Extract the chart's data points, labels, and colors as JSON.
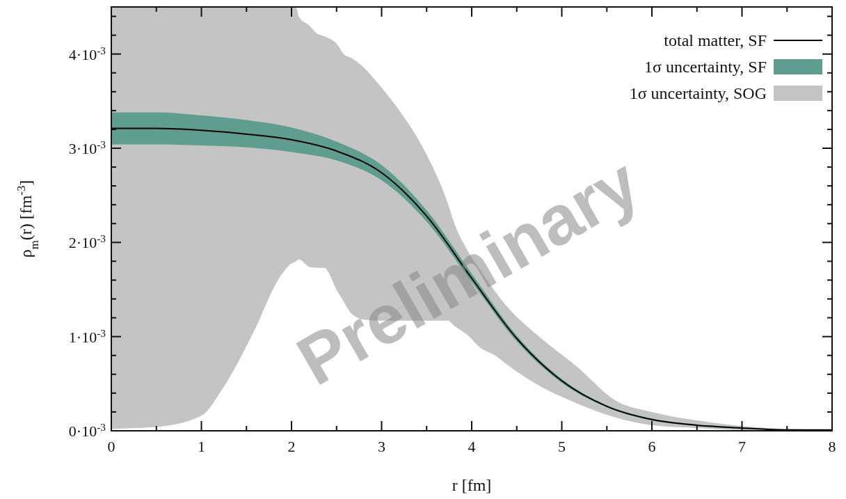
{
  "chart_data": {
    "type": "line",
    "xlabel": "r [fm]",
    "ylabel": "ρ$_{m}$(r) [fm$^{-3}$]",
    "xlim": [
      0,
      8
    ],
    "ylim": [
      0,
      0.0045
    ],
    "xticks": [
      0,
      {
        "value": 0.5,
        "label": null
      },
      1,
      {
        "value": 1.5,
        "label": null
      },
      2,
      {
        "value": 2.5,
        "label": null
      },
      3,
      {
        "value": 3.5,
        "label": null
      },
      4,
      {
        "value": 4.5,
        "label": null
      },
      5,
      {
        "value": 5.5,
        "label": null
      },
      6,
      {
        "value": 6.5,
        "label": null
      },
      7,
      {
        "value": 7.5,
        "label": null
      },
      8
    ],
    "yticks": [
      {
        "value": 0,
        "label": "0·10$^{-3}$"
      },
      {
        "value": 0.0002,
        "label": null
      },
      {
        "value": 0.0004,
        "label": null
      },
      {
        "value": 0.0006,
        "label": null
      },
      {
        "value": 0.0008,
        "label": null
      },
      {
        "value": 0.001,
        "label": "1·10$^{-3}$"
      },
      {
        "value": 0.0012,
        "label": null
      },
      {
        "value": 0.0014,
        "label": null
      },
      {
        "value": 0.0016,
        "label": null
      },
      {
        "value": 0.0018,
        "label": null
      },
      {
        "value": 0.002,
        "label": "2·10$^{-3}$"
      },
      {
        "value": 0.0022,
        "label": null
      },
      {
        "value": 0.0024,
        "label": null
      },
      {
        "value": 0.0026,
        "label": null
      },
      {
        "value": 0.0028,
        "label": null
      },
      {
        "value": 0.003,
        "label": "3·10$^{-3}$"
      },
      {
        "value": 0.0032,
        "label": null
      },
      {
        "value": 0.0034,
        "label": null
      },
      {
        "value": 0.0036,
        "label": null
      },
      {
        "value": 0.0038,
        "label": null
      },
      {
        "value": 0.004,
        "label": "4·10$^{-3}$"
      },
      {
        "value": 0.0042,
        "label": null
      },
      {
        "value": 0.0044,
        "label": null
      }
    ],
    "legend": "top right",
    "grid": false,
    "annotations": [
      "Preliminary"
    ],
    "series": [
      {
        "name": "1σ uncertainty, SOG",
        "color": "#c4c4c4",
        "x": [
          0,
          0.5,
          1,
          1.23,
          1.57,
          1.87,
          1.99,
          2.05,
          2.08,
          2.2,
          2.28,
          2.36,
          2.51,
          2.58,
          2.66,
          2.81,
          2.95,
          3.19,
          3.5,
          3.74,
          3.8,
          3.95,
          4.1,
          4.26,
          4.41,
          4.71,
          5.17,
          5.6,
          6,
          6.5,
          7,
          7.5,
          8
        ],
        "values": [
          null,
          null,
          null,
          null,
          null,
          null,
          null,
          null,
          null,
          null,
          null,
          null,
          null,
          null,
          null,
          null,
          null,
          null,
          null,
          null,
          null,
          null,
          null,
          null,
          null,
          null,
          null,
          null,
          null,
          null,
          null,
          null,
          null
        ],
        "lower": [
          2e-05,
          4e-05,
          0.00016,
          0.00044,
          0.00103,
          0.00163,
          0.00177,
          0.0018,
          0.00182,
          0.00174,
          0.00173,
          0.00173,
          0.00148,
          0.00137,
          0.00125,
          0.00118,
          0.00117,
          0.00117,
          0.00117,
          0.00117,
          0.00112,
          0.00102,
          0.00088,
          0.0008,
          0.00069,
          0.0005,
          0.00029,
          0.00014,
          6e-05,
          3e-05,
          1e-05,
          1e-05,
          0
        ],
        "upper": [
          0.0045,
          0.0045,
          0.0045,
          0.0045,
          0.0045,
          0.0045,
          0.0045,
          0.0045,
          0.0044,
          0.0043,
          0.00422,
          0.00419,
          0.0041,
          0.004,
          0.00396,
          0.00385,
          0.0037,
          0.00341,
          0.00293,
          0.0024,
          0.00222,
          0.00192,
          0.0017,
          0.00148,
          0.0013,
          0.00103,
          0.00068,
          0.00032,
          0.0002,
          0.00011,
          5e-05,
          2e-05,
          1e-05
        ]
      },
      {
        "name": "1σ uncertainty, SF",
        "color": "#5f9e8f",
        "x": [
          0,
          0.5,
          1,
          1.5,
          2,
          2.5,
          3,
          3.5,
          4,
          4.5,
          5,
          5.5,
          6,
          6.5,
          7,
          7.5,
          8
        ],
        "values": [
          null,
          null,
          null,
          null,
          null,
          null,
          null,
          null,
          null,
          null,
          null,
          null,
          null,
          null,
          null,
          null,
          null
        ],
        "lower": [
          0.00304,
          0.00304,
          0.00303,
          0.00301,
          0.00296,
          0.00287,
          0.00266,
          0.00222,
          0.00158,
          0.00095,
          0.00051,
          0.00025,
          0.00011,
          5e-05,
          2e-05,
          1e-05,
          0
        ],
        "upper": [
          0.00338,
          0.00338,
          0.00335,
          0.0033,
          0.00322,
          0.00307,
          0.00282,
          0.00234,
          0.00167,
          0.00101,
          0.00055,
          0.00027,
          0.00013,
          6e-05,
          3e-05,
          1e-05,
          1e-05
        ]
      },
      {
        "name": "total matter, SF",
        "color": "#000000",
        "line_style": "solid",
        "x": [
          0,
          0.5,
          1,
          1.5,
          2,
          2.5,
          3,
          3.5,
          4,
          4.5,
          5,
          5.5,
          6,
          6.5,
          7,
          7.5,
          8
        ],
        "values": [
          0.00321,
          0.00321,
          0.00319,
          0.00315,
          0.00309,
          0.00297,
          0.00274,
          0.00228,
          0.00162,
          0.00098,
          0.00053,
          0.00026,
          0.00012,
          6e-05,
          3e-05,
          1e-05,
          1e-05
        ]
      }
    ]
  }
}
